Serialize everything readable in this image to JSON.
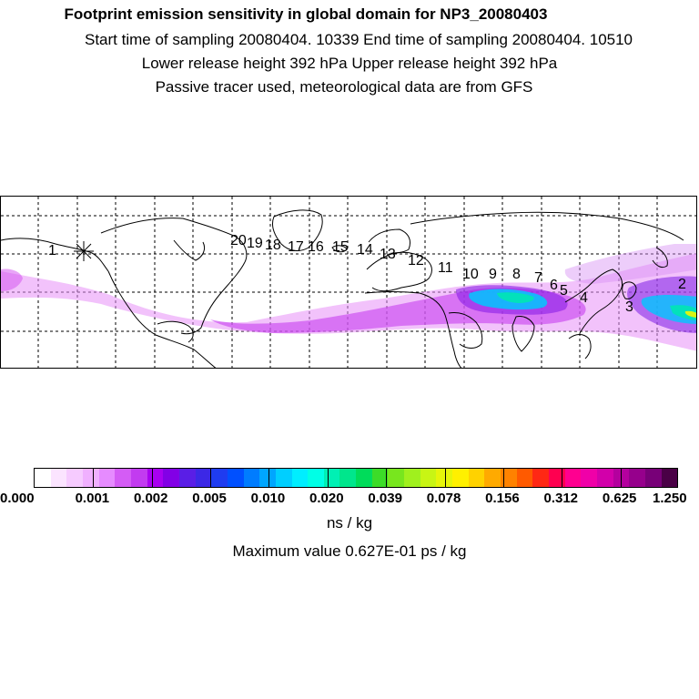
{
  "header": {
    "title": "Footprint emission sensitivity in global domain for NP3_20080403",
    "line2": "Start time of sampling 20080404. 10339     End time of sampling 20080404. 10510",
    "line3": "Lower release height  392 hPa        Upper release height  392 hPa",
    "line4": "Passive tracer used, meteorological data are from GFS"
  },
  "map": {
    "trajectory_labels": [
      "1",
      "2",
      "3",
      "4",
      "5",
      "6",
      "7",
      "8",
      "9",
      "10",
      "11",
      "12",
      "13",
      "14",
      "15",
      "16",
      "17",
      "18",
      "19",
      "20"
    ],
    "release_marker": "release-point-star",
    "colors": {
      "land_outline": "#000000",
      "grid": "#000000",
      "low": "#d24bf0",
      "mid": "#00c8ff",
      "high": "#00e6b4"
    }
  },
  "colorbar": {
    "colors": [
      "#ffffff",
      "#fbe4ff",
      "#f6cbff",
      "#f0b0ff",
      "#e68bff",
      "#d45cf5",
      "#c23bf0",
      "#a800f0",
      "#8200e6",
      "#5a1ee6",
      "#3c28e6",
      "#1f3cf0",
      "#0050ff",
      "#007cff",
      "#00a6ff",
      "#00cfff",
      "#00eeff",
      "#00ffe6",
      "#00f0b4",
      "#00e68c",
      "#00dc5a",
      "#3cdc28",
      "#78e61e",
      "#a0f01e",
      "#c8f514",
      "#e6f50a",
      "#fff000",
      "#ffd200",
      "#ffaa00",
      "#ff8200",
      "#ff5a00",
      "#ff2814",
      "#ff0050",
      "#ff0090",
      "#f000a8",
      "#d200aa",
      "#b4009e",
      "#96008c",
      "#780078",
      "#4a0046"
    ],
    "tick_labels": [
      "0.000",
      "0.001",
      "0.002",
      "0.005",
      "0.010",
      "0.020",
      "0.039",
      "0.078",
      "0.156",
      "0.312",
      "0.625",
      "1.250"
    ],
    "units": "ns / kg",
    "max_value": "Maximum value  0.627E-01 ps / kg"
  }
}
